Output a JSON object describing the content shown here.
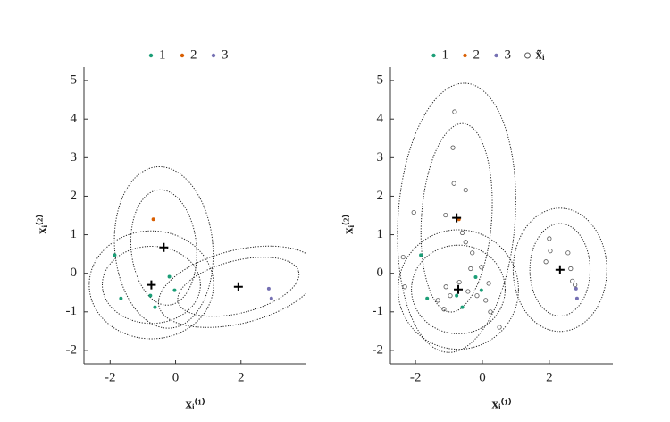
{
  "chart_data": [
    {
      "type": "scatter",
      "xlabel": "xᵢ⁽¹⁾",
      "ylabel": "xᵢ⁽²⁾",
      "xlim": [
        -2.8,
        4.0
      ],
      "ylim": [
        -2.35,
        5.35
      ],
      "xticks": [
        -2,
        0,
        2
      ],
      "yticks": [
        -2,
        -1,
        0,
        1,
        2,
        3,
        4,
        5
      ],
      "legend": "top",
      "series": [
        {
          "name": "1",
          "color": "#1b9e77",
          "marker": "filled",
          "x": [
            -1.86,
            -1.67,
            -0.77,
            -0.63,
            -0.19,
            -0.03
          ],
          "y": [
            0.47,
            -0.65,
            -0.58,
            -0.88,
            -0.09,
            -0.44
          ]
        },
        {
          "name": "2",
          "color": "#d95f02",
          "marker": "filled",
          "x": [
            -0.68
          ],
          "y": [
            1.4
          ]
        },
        {
          "name": "3",
          "color": "#7570b3",
          "marker": "filled",
          "x": [
            2.85,
            2.93
          ],
          "y": [
            -0.4,
            -0.65
          ]
        }
      ],
      "components": [
        {
          "x": -0.36,
          "y": 0.67,
          "ellipses": [
            {
              "rx": 1.5,
              "ry": 2.1,
              "angle": 5
            },
            {
              "rx": 1.0,
              "ry": 1.5,
              "angle": 5
            }
          ]
        },
        {
          "x": -0.74,
          "y": -0.3,
          "ellipses": [
            {
              "rx": 1.9,
              "ry": 1.4,
              "angle": 0
            },
            {
              "rx": 1.5,
              "ry": 1.0,
              "angle": 0
            }
          ]
        },
        {
          "x": 1.92,
          "y": -0.35,
          "ellipses": [
            {
              "rx": 2.5,
              "ry": 0.95,
              "angle": 14
            },
            {
              "rx": 1.9,
              "ry": 0.68,
              "angle": 14
            }
          ]
        }
      ]
    },
    {
      "type": "scatter",
      "xlabel": "xᵢ⁽¹⁾",
      "ylabel": "xᵢ⁽²⁾",
      "xlim": [
        -2.75,
        3.9
      ],
      "ylim": [
        -2.35,
        5.35
      ],
      "xticks": [
        -2,
        0,
        2
      ],
      "yticks": [
        -2,
        -1,
        0,
        1,
        2,
        3,
        4,
        5
      ],
      "legend": "top",
      "series": [
        {
          "name": "1",
          "color": "#1b9e77",
          "marker": "filled",
          "x": [
            -1.84,
            -1.65,
            -0.77,
            -0.6,
            -0.2,
            -0.03
          ],
          "y": [
            0.47,
            -0.65,
            -0.58,
            -0.88,
            -0.1,
            -0.44
          ]
        },
        {
          "name": "2",
          "color": "#d95f02",
          "marker": "filled",
          "x": [
            -0.7
          ],
          "y": [
            1.4
          ]
        },
        {
          "name": "3",
          "color": "#7570b3",
          "marker": "filled",
          "x": [
            2.8,
            2.83
          ],
          "y": [
            -0.4,
            -0.65
          ]
        },
        {
          "name": "x̃ᵢ",
          "color": "#555555",
          "marker": "open",
          "x": [
            -0.83,
            -0.88,
            -0.85,
            -0.5,
            -1.1,
            -2.05,
            -2.37,
            -2.32,
            -0.6,
            -0.5,
            -0.3,
            2.0,
            2.03,
            1.9,
            2.56,
            2.64,
            2.69,
            2.77,
            -1.09,
            -0.96,
            -0.69,
            -0.43,
            -0.35,
            -0.16,
            0.1,
            0.24,
            0.51,
            -1.33,
            -1.15,
            -0.03,
            0.19
          ],
          "y": [
            4.19,
            3.26,
            2.33,
            2.16,
            1.51,
            1.58,
            0.42,
            -0.35,
            1.05,
            0.81,
            0.53,
            0.9,
            0.58,
            0.3,
            0.53,
            0.12,
            -0.2,
            -0.3,
            -0.35,
            -0.58,
            -0.23,
            -0.47,
            0.12,
            -0.58,
            -0.7,
            -1.0,
            -1.4,
            -0.7,
            -0.93,
            0.16,
            -0.26
          ]
        }
      ],
      "components": [
        {
          "x": -0.77,
          "y": 1.44,
          "ellipses": [
            {
              "rx": 1.75,
              "ry": 3.5,
              "angle": -4
            },
            {
              "rx": 1.05,
              "ry": 2.45,
              "angle": -4
            }
          ]
        },
        {
          "x": -0.72,
          "y": -0.42,
          "ellipses": [
            {
              "rx": 1.8,
              "ry": 1.55,
              "angle": 0
            },
            {
              "rx": 1.4,
              "ry": 1.15,
              "angle": 0
            }
          ]
        },
        {
          "x": 2.32,
          "y": 0.09,
          "ellipses": [
            {
              "rx": 1.4,
              "ry": 1.6,
              "angle": 0
            },
            {
              "rx": 0.9,
              "ry": 1.2,
              "angle": 0
            }
          ]
        }
      ]
    }
  ]
}
